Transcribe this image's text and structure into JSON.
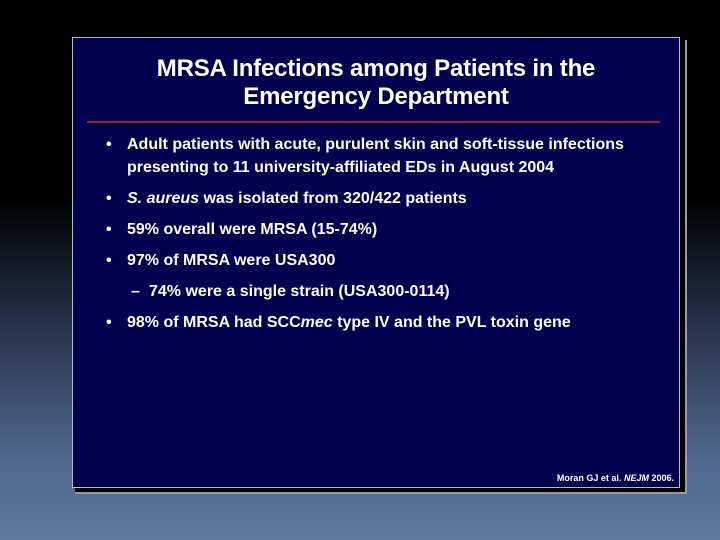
{
  "slide": {
    "title_line1": "MRSA Infections among Patients in the",
    "title_line2": "Emergency Department",
    "bullet_symbol": "•",
    "sub_symbol": "–",
    "bullets": [
      {
        "text": "Adult patients with acute, purulent skin and soft-tissue infections presenting to 11 university-affiliated EDs in August 2004"
      },
      {
        "text_italic": "S. aureus",
        "text_rest": " was isolated from 320/422 patients"
      },
      {
        "text": "59% overall were MRSA (15-74%)"
      },
      {
        "text": "97% of MRSA were USA300"
      },
      {
        "text_before": "98% of MRSA had SCC",
        "text_italic": "mec",
        "text_after": " type IV and the PVL toxin gene"
      }
    ],
    "sub_bullets": [
      {
        "text": "74% were a single strain (USA300-0114)"
      }
    ],
    "citation": {
      "before": "Moran GJ et al. ",
      "journal": "NEJM",
      "after": " 2006."
    }
  },
  "colors": {
    "slide_background": "#00004f",
    "title_rule": "#a3242c",
    "text": "#ffffff"
  }
}
